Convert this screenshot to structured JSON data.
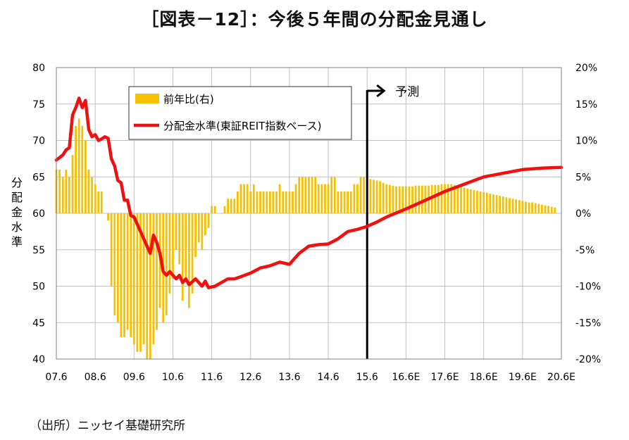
{
  "page": {
    "title": "［図表－12］：今後５年間の分配金見通し",
    "source": "（出所）ニッセイ基礎研究所"
  },
  "chart_data": {
    "type": "bar+line",
    "title": "［図表－12］：今後５年間の分配金見通し",
    "ylabel_left": "分配金水準",
    "ylim_left": [
      40,
      80
    ],
    "yticks_left": [
      "80",
      "75",
      "70",
      "65",
      "60",
      "55",
      "50",
      "45",
      "40"
    ],
    "ylim_right": [
      -20,
      20
    ],
    "yticks_right": [
      "20%",
      "15%",
      "10%",
      "5%",
      "0%",
      "-5%",
      "-10%",
      "-15%",
      "-20%"
    ],
    "x_start": "2007-06",
    "x_end": "2020-06",
    "xticks": [
      "07.6",
      "08.6",
      "09.6",
      "10.6",
      "11.6",
      "12.6",
      "13.6",
      "14.6",
      "15.6",
      "16.6E",
      "17.6E",
      "18.6E",
      "19.6E",
      "20.6E"
    ],
    "grid": true,
    "legend_position": "top-left",
    "forecast_divider": {
      "x": "2015-06",
      "label": "予測"
    },
    "colors": {
      "bar": "#F5C000",
      "line": "#EE1111",
      "divider": "#000000",
      "grid": "#C0C0C0"
    },
    "series": [
      {
        "name": "前年比(右)",
        "kind": "bar",
        "axis": "right",
        "unit": "%",
        "start": "2007-06",
        "values": [
          6,
          6,
          5,
          6,
          5,
          8,
          12,
          13,
          12,
          10,
          6,
          5,
          4,
          3,
          3,
          0,
          -1,
          -10,
          -14,
          -15,
          -17,
          -17,
          -16,
          -17,
          -18,
          -19,
          -19,
          -18,
          -20,
          -20,
          -18,
          -16,
          -13,
          -15,
          -14,
          -11,
          -9,
          -5,
          -7,
          -12,
          -9,
          -13,
          -11,
          -6,
          -4,
          -5,
          -3,
          -2,
          1,
          1,
          0,
          0,
          1,
          2,
          2,
          2,
          3,
          4,
          4,
          4,
          3,
          4,
          3,
          3,
          3,
          3,
          3,
          3,
          3,
          4,
          3,
          3,
          3,
          3,
          4,
          5,
          5,
          5,
          5,
          5,
          5,
          4,
          4,
          4,
          4,
          5,
          5,
          3,
          3,
          3,
          3,
          3,
          4,
          4,
          5,
          5,
          4.8,
          4.7,
          4.6,
          4.5,
          4.4,
          4.2,
          4.0,
          3.9,
          3.8,
          3.7,
          3.7,
          3.7,
          3.7,
          3.7,
          3.7,
          3.8,
          3.8,
          3.8,
          3.8,
          3.8,
          3.9,
          3.9,
          3.9,
          4.0,
          4.0,
          4.0,
          4.0,
          3.9,
          3.8,
          3.6,
          3.5,
          3.4,
          3.3,
          3.2,
          3.1,
          3.0,
          2.9,
          2.8,
          2.7,
          2.6,
          2.5,
          2.4,
          2.3,
          2.2,
          2.1,
          2.0,
          1.9,
          1.8,
          1.7,
          1.6,
          1.5,
          1.5,
          1.4,
          1.3,
          1.2,
          1.1,
          1.0,
          0.9,
          0.8
        ]
      },
      {
        "name": "分配金水準(東証REIT指数ベース)",
        "kind": "line",
        "axis": "left",
        "points": [
          [
            "2007-06",
            67.3
          ],
          [
            "2007-08",
            68.0
          ],
          [
            "2007-09",
            68.7
          ],
          [
            "2007-10",
            69.0
          ],
          [
            "2007-11",
            73.5
          ],
          [
            "2007-12",
            74.5
          ],
          [
            "2008-01",
            75.8
          ],
          [
            "2008-02",
            74.5
          ],
          [
            "2008-03",
            75.5
          ],
          [
            "2008-04",
            71.5
          ],
          [
            "2008-05",
            70.5
          ],
          [
            "2008-06",
            70.8
          ],
          [
            "2008-07",
            70.0
          ],
          [
            "2008-08",
            70.2
          ],
          [
            "2008-09",
            70.5
          ],
          [
            "2008-10",
            70.3
          ],
          [
            "2008-11",
            67.5
          ],
          [
            "2008-12",
            66.5
          ],
          [
            "2009-01",
            64.5
          ],
          [
            "2009-02",
            64.2
          ],
          [
            "2009-03",
            61.8
          ],
          [
            "2009-04",
            61.8
          ],
          [
            "2009-05",
            59.7
          ],
          [
            "2009-06",
            59.5
          ],
          [
            "2009-07",
            58.5
          ],
          [
            "2009-08",
            57.5
          ],
          [
            "2009-09",
            56.5
          ],
          [
            "2009-10",
            55.5
          ],
          [
            "2009-11",
            54.5
          ],
          [
            "2009-12",
            57.0
          ],
          [
            "2010-01",
            56.0
          ],
          [
            "2010-02",
            54.5
          ],
          [
            "2010-03",
            52.0
          ],
          [
            "2010-04",
            51.5
          ],
          [
            "2010-05",
            52.0
          ],
          [
            "2010-06",
            51.5
          ],
          [
            "2010-07",
            51.0
          ],
          [
            "2010-08",
            51.5
          ],
          [
            "2010-09",
            50.5
          ],
          [
            "2010-10",
            51.0
          ],
          [
            "2010-11",
            50.2
          ],
          [
            "2011-01",
            51.0
          ],
          [
            "2011-02",
            50.5
          ],
          [
            "2011-03",
            50.0
          ],
          [
            "2011-04",
            50.7
          ],
          [
            "2011-05",
            49.8
          ],
          [
            "2011-07",
            50.0
          ],
          [
            "2011-09",
            50.5
          ],
          [
            "2011-11",
            51.0
          ],
          [
            "2012-01",
            51.0
          ],
          [
            "2012-03",
            51.3
          ],
          [
            "2012-06",
            51.8
          ],
          [
            "2012-09",
            52.5
          ],
          [
            "2012-12",
            52.8
          ],
          [
            "2013-03",
            53.3
          ],
          [
            "2013-06",
            53.0
          ],
          [
            "2013-09",
            54.5
          ],
          [
            "2013-12",
            55.5
          ],
          [
            "2014-03",
            55.7
          ],
          [
            "2014-06",
            55.8
          ],
          [
            "2014-09",
            56.5
          ],
          [
            "2014-12",
            57.5
          ],
          [
            "2015-03",
            57.8
          ],
          [
            "2015-06",
            58.2
          ],
          [
            "2015-09",
            58.8
          ],
          [
            "2015-12",
            59.5
          ],
          [
            "2016-06",
            60.6
          ],
          [
            "2016-12",
            61.8
          ],
          [
            "2017-06",
            63.0
          ],
          [
            "2017-12",
            64.0
          ],
          [
            "2018-06",
            65.0
          ],
          [
            "2018-12",
            65.5
          ],
          [
            "2019-06",
            66.0
          ],
          [
            "2019-12",
            66.2
          ],
          [
            "2020-06",
            66.3
          ]
        ]
      }
    ]
  }
}
